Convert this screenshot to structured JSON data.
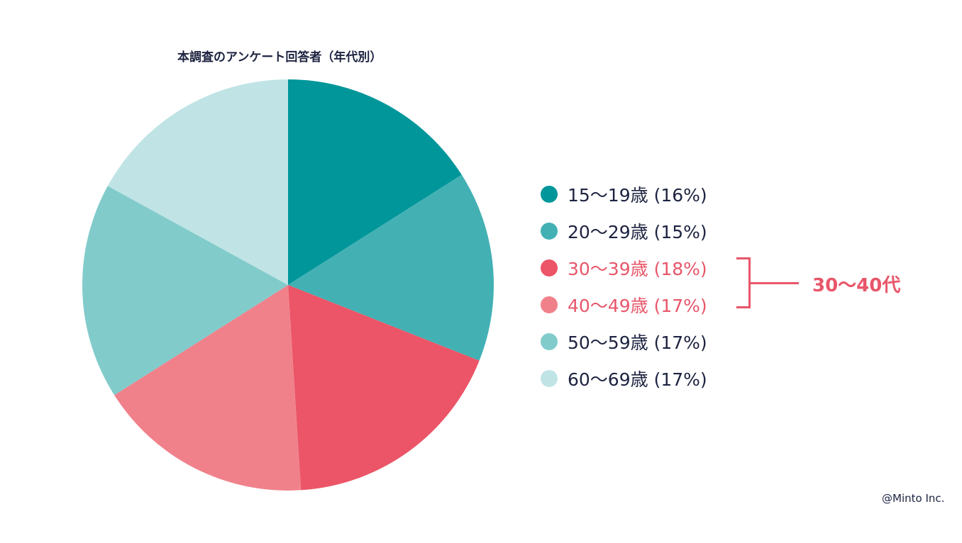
{
  "chart_data": {
    "type": "pie",
    "title": "本調査のアンケート回答者（年代別）",
    "slices": [
      {
        "label": "15〜19歳 (16%)",
        "value": 16,
        "color": "#00969a",
        "text_color": "#1d2340"
      },
      {
        "label": "20〜29歳 (15%)",
        "value": 15,
        "color": "#43b1b4",
        "text_color": "#1d2340"
      },
      {
        "label": "30〜39歳 (18%)",
        "value": 18,
        "color": "#eb5567",
        "text_color": "#e8566a"
      },
      {
        "label": "40〜49歳 (17%)",
        "value": 17,
        "color": "#f0818b",
        "text_color": "#e8566a"
      },
      {
        "label": "50〜59歳 (17%)",
        "value": 17,
        "color": "#82cbcb",
        "text_color": "#1d2340"
      },
      {
        "label": "60〜69歳 (17%)",
        "value": 17,
        "color": "#c0e4e5",
        "text_color": "#1d2340"
      }
    ],
    "start_angle_deg": 0,
    "direction": "clockwise",
    "legend_position": "right",
    "group_annotation": {
      "label": "30〜40代",
      "covers": [
        "30〜39歳 (18%)",
        "40〜49歳 (17%)"
      ],
      "color": "#e8566a"
    }
  },
  "credit": "@Minto Inc."
}
